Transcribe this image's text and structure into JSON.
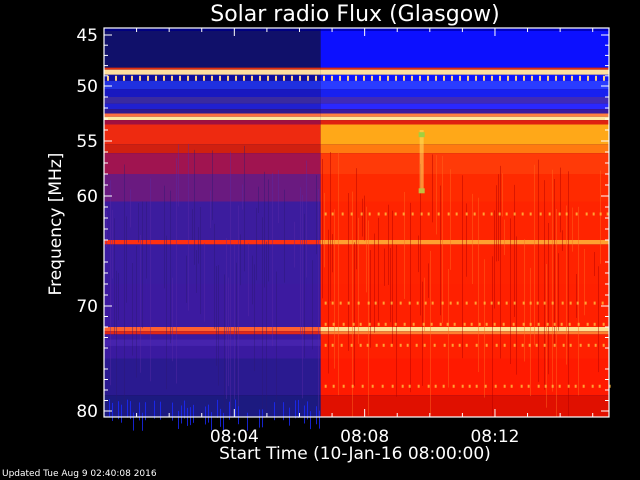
{
  "chart_data": {
    "type": "heatmap",
    "title": "Solar radio Flux (Glasgow)",
    "xlabel": "Start Time (10-Jan-16 08:00:00)",
    "ylabel": "Frequency [MHz]",
    "x_unit": "minutes after 08:00:00",
    "xlim": [
      0,
      15.5
    ],
    "ylim": [
      44.3,
      80.5
    ],
    "y_axis_reversed": true,
    "y_scale": "nonlinear (frequency decreases upward)",
    "xticks": [
      {
        "value": 4,
        "label": "08:04"
      },
      {
        "value": 8,
        "label": "08:08"
      },
      {
        "value": 12,
        "label": "08:12"
      }
    ],
    "yticks": [
      {
        "value": 45,
        "label": "45"
      },
      {
        "value": 50,
        "label": "50"
      },
      {
        "value": 55,
        "label": "55"
      },
      {
        "value": 60,
        "label": "60"
      },
      {
        "value": 70,
        "label": "70"
      },
      {
        "value": 80,
        "label": "80"
      }
    ],
    "colormap": [
      "#000060",
      "#3030c0",
      "#0000ff",
      "#a00000",
      "#ff2000",
      "#ffa000",
      "#ffff80"
    ],
    "transition_time": 6.65,
    "regions": [
      {
        "name": "before",
        "time": [
          0,
          6.65
        ],
        "level_low_band": "blue",
        "level_high_band": "dark red / purple"
      },
      {
        "name": "after",
        "time": [
          6.65,
          15.5
        ],
        "level_low_band": "bright blue",
        "level_high_band": "red / orange"
      }
    ],
    "strong_lines_mhz": [
      48.6,
      52.8,
      64.2,
      72.4
    ]
  },
  "footer": {
    "updated": "Updated Tue Aug  9 02:40:08 2016"
  }
}
